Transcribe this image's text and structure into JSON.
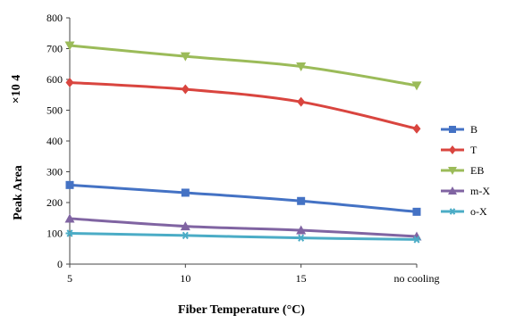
{
  "chart_data": {
    "type": "line",
    "title": "",
    "xlabel": "Fiber Temperature (°C)",
    "ylabel": "Peak Area",
    "ylabel_multiplier": "×10 4",
    "categories": [
      "5",
      "10",
      "15",
      "no cooling"
    ],
    "yticks": [
      "0",
      "100",
      "200",
      "300",
      "400",
      "500",
      "600",
      "700",
      "800"
    ],
    "ylim": [
      0,
      800
    ],
    "grid": false,
    "legend_position": "right",
    "series": [
      {
        "name": "B",
        "color": "#4472C4",
        "marker": "square",
        "values": [
          257,
          232,
          205,
          170
        ]
      },
      {
        "name": "T",
        "color": "#D9453F",
        "marker": "diamond",
        "values": [
          590,
          568,
          527,
          440
        ]
      },
      {
        "name": "EB",
        "color": "#9BBB59",
        "marker": "triangle-down",
        "values": [
          710,
          675,
          642,
          580
        ]
      },
      {
        "name": "m-X",
        "color": "#8064A2",
        "marker": "triangle",
        "values": [
          148,
          123,
          110,
          90
        ]
      },
      {
        "name": "o-X",
        "color": "#4BACC6",
        "marker": "star",
        "values": [
          100,
          93,
          85,
          80
        ]
      }
    ]
  }
}
